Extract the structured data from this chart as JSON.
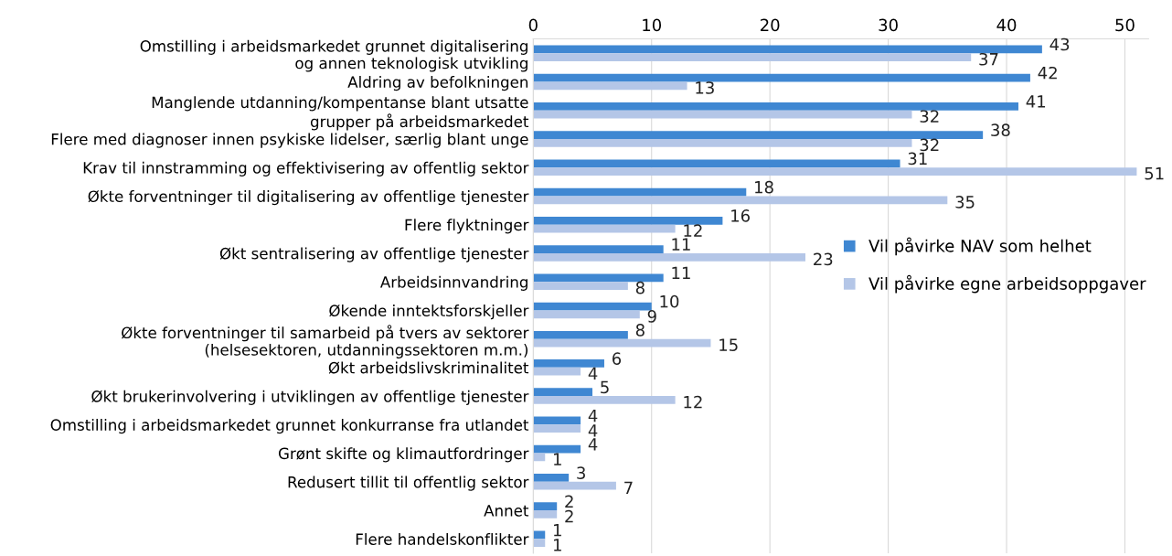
{
  "chart_data": {
    "type": "bar",
    "orientation": "horizontal",
    "categories": [
      "Omstilling i arbeidsmarkedet grunnet digitalisering\nog annen teknologisk utvikling",
      "Aldring av befolkningen",
      "Manglende utdanning/kompentanse blant utsatte\ngrupper på arbeidsmarkedet",
      "Flere med diagnoser innen psykiske lidelser, særlig blant unge",
      "Krav til innstramming og effektivisering av offentlig sektor",
      "Økte forventninger til digitalisering av offentlige tjenester",
      "Flere flyktninger",
      "Økt sentralisering av offentlige tjenester",
      "Arbeidsinnvandring",
      "Økende inntektsforskjeller",
      "Økte forventninger til samarbeid på tvers av sektorer\n(helsesektoren, utdanningssektoren m.m.)",
      "Økt arbeidslivskriminalitet",
      "Økt brukerinvolvering i utviklingen av offentlige tjenester",
      "Omstilling i arbeidsmarkedet grunnet konkurranse fra utlandet",
      "Grønt skifte og klimautfordringer",
      "Redusert tillit til offentlig sektor",
      "Annet",
      "Flere handelskonflikter"
    ],
    "series": [
      {
        "name": "Vil påvirke NAV som helhet",
        "color": "#3f87d2",
        "values": [
          43,
          42,
          41,
          38,
          31,
          18,
          16,
          11,
          11,
          10,
          8,
          6,
          5,
          4,
          4,
          3,
          2,
          1
        ]
      },
      {
        "name": "Vil påvirke egne arbeidsoppgaver",
        "color": "#b4c6e7",
        "values": [
          37,
          13,
          32,
          32,
          51,
          35,
          12,
          23,
          8,
          9,
          15,
          4,
          12,
          4,
          1,
          7,
          2,
          1
        ]
      }
    ],
    "xlim": [
      0,
      52
    ],
    "xticks": [
      0,
      10,
      20,
      30,
      40,
      50
    ],
    "grid": "x",
    "legend": "right",
    "data_labels": true
  }
}
